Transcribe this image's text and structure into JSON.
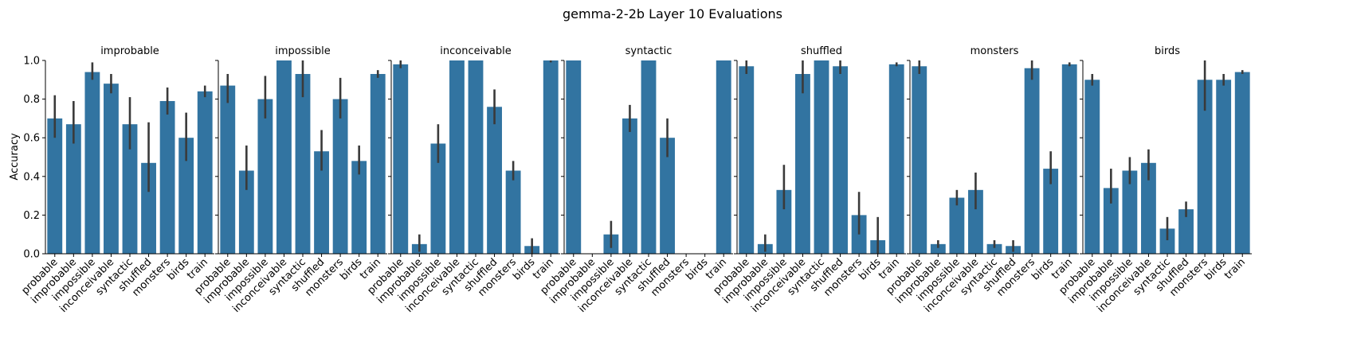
{
  "figure": {
    "title": "gemma-2-2b Layer 10 Evaluations",
    "ylabel": "Accuracy"
  },
  "colors": {
    "bar": "#3274a1",
    "errorbar": "#3a3a3a",
    "axis": "#000000"
  },
  "chart_data": {
    "type": "bar",
    "categories": [
      "probable",
      "improbable",
      "impossible",
      "inconceivable",
      "syntactic",
      "shuffled",
      "monsters",
      "birds",
      "train"
    ],
    "ylim": [
      0,
      1
    ],
    "yticks": [
      "0.0",
      "0.2",
      "0.4",
      "0.6",
      "0.8",
      "1.0"
    ],
    "grid": false,
    "panels": [
      {
        "title": "improbable",
        "values": [
          0.7,
          0.67,
          0.94,
          0.88,
          0.67,
          0.47,
          0.79,
          0.6,
          0.84
        ],
        "err_low": [
          0.6,
          0.57,
          0.9,
          0.83,
          0.54,
          0.32,
          0.72,
          0.48,
          0.81
        ],
        "err_high": [
          0.82,
          0.79,
          0.99,
          0.93,
          0.81,
          0.68,
          0.86,
          0.73,
          0.87
        ]
      },
      {
        "title": "impossible",
        "values": [
          0.87,
          0.43,
          0.8,
          1.0,
          0.93,
          0.53,
          0.8,
          0.48,
          0.93
        ],
        "err_low": [
          0.78,
          0.33,
          0.7,
          1.0,
          0.81,
          0.43,
          0.7,
          0.41,
          0.91
        ],
        "err_high": [
          0.93,
          0.56,
          0.92,
          1.0,
          1.0,
          0.64,
          0.91,
          0.56,
          0.95
        ]
      },
      {
        "title": "inconceivable",
        "values": [
          0.98,
          0.05,
          0.57,
          1.0,
          1.0,
          0.76,
          0.43,
          0.04,
          1.0
        ],
        "err_low": [
          0.96,
          0.01,
          0.47,
          1.0,
          1.0,
          0.67,
          0.38,
          0.0,
          0.99
        ],
        "err_high": [
          1.0,
          0.1,
          0.67,
          1.0,
          1.0,
          0.85,
          0.48,
          0.08,
          1.0
        ]
      },
      {
        "title": "syntactic",
        "values": [
          1.0,
          0.0,
          0.1,
          0.7,
          1.0,
          0.6,
          0.0,
          0.0,
          1.0
        ],
        "err_low": [
          1.0,
          0.0,
          0.03,
          0.63,
          1.0,
          0.5,
          0.0,
          0.0,
          1.0
        ],
        "err_high": [
          1.0,
          0.0,
          0.17,
          0.77,
          1.0,
          0.7,
          0.0,
          0.0,
          1.0
        ]
      },
      {
        "title": "shuffled",
        "values": [
          0.97,
          0.05,
          0.33,
          0.93,
          1.0,
          0.97,
          0.2,
          0.07,
          0.98
        ],
        "err_low": [
          0.93,
          0.01,
          0.23,
          0.83,
          1.0,
          0.93,
          0.1,
          0.0,
          0.97
        ],
        "err_high": [
          1.0,
          0.1,
          0.46,
          1.0,
          1.0,
          1.0,
          0.32,
          0.19,
          0.99
        ]
      },
      {
        "title": "monsters",
        "values": [
          0.97,
          0.05,
          0.29,
          0.33,
          0.05,
          0.04,
          0.96,
          0.44,
          0.98
        ],
        "err_low": [
          0.93,
          0.03,
          0.25,
          0.23,
          0.03,
          0.01,
          0.9,
          0.36,
          0.97
        ],
        "err_high": [
          1.0,
          0.07,
          0.33,
          0.42,
          0.07,
          0.07,
          1.0,
          0.53,
          0.99
        ]
      },
      {
        "title": "birds",
        "values": [
          0.9,
          0.34,
          0.43,
          0.47,
          0.13,
          0.23,
          0.9,
          0.9,
          0.94
        ],
        "err_low": [
          0.87,
          0.26,
          0.36,
          0.38,
          0.07,
          0.19,
          0.74,
          0.87,
          0.93
        ],
        "err_high": [
          0.93,
          0.44,
          0.5,
          0.54,
          0.19,
          0.27,
          1.0,
          0.93,
          0.95
        ]
      }
    ]
  }
}
